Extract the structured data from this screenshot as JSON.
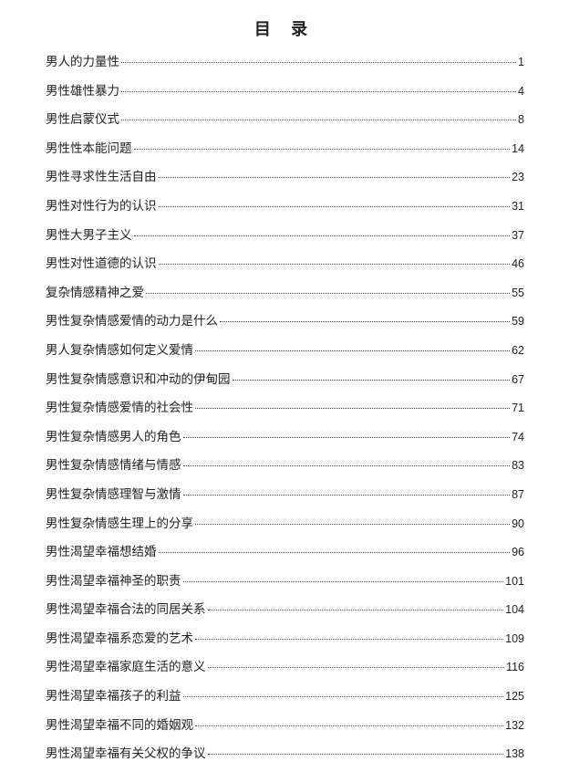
{
  "title": "目 录",
  "entries": [
    {
      "label": "男人的力量性",
      "page": "1"
    },
    {
      "label": "男性雄性暴力",
      "page": "4"
    },
    {
      "label": "男性启蒙仪式",
      "page": "8"
    },
    {
      "label": "男性性本能问题",
      "page": "14"
    },
    {
      "label": "男性寻求性生活自由",
      "page": "23"
    },
    {
      "label": "男性对性行为的认识",
      "page": "31"
    },
    {
      "label": "男性大男子主义",
      "page": "37"
    },
    {
      "label": "男性对性道德的认识",
      "page": "46"
    },
    {
      "label": "复杂情感精神之爱",
      "page": "55"
    },
    {
      "label": "男性复杂情感爱情的动力是什么",
      "page": "59"
    },
    {
      "label": "男人复杂情感如何定义爱情",
      "page": "62"
    },
    {
      "label": "男性复杂情感意识和冲动的伊甸园",
      "page": "67"
    },
    {
      "label": "男性复杂情感爱情的社会性",
      "page": "71"
    },
    {
      "label": "男性复杂情感男人的角色",
      "page": "74"
    },
    {
      "label": "男性复杂情感情绪与情感",
      "page": "83"
    },
    {
      "label": "男性复杂情感理智与激情",
      "page": "87"
    },
    {
      "label": "男性复杂情感生理上的分享",
      "page": "90"
    },
    {
      "label": "男性渴望幸福想结婚",
      "page": "96"
    },
    {
      "label": "男性渴望幸福神圣的职责",
      "page": "101"
    },
    {
      "label": "男性渴望幸福合法的同居关系",
      "page": "104"
    },
    {
      "label": "男性渴望幸福系恋爱的艺术",
      "page": "109"
    },
    {
      "label": "男性渴望幸福家庭生活的意义",
      "page": "116"
    },
    {
      "label": "男性渴望幸福孩子的利益",
      "page": "125"
    },
    {
      "label": "男性渴望幸福不同的婚姻观",
      "page": "132"
    },
    {
      "label": "男性渴望幸福有关父权的争议",
      "page": "138"
    }
  ]
}
